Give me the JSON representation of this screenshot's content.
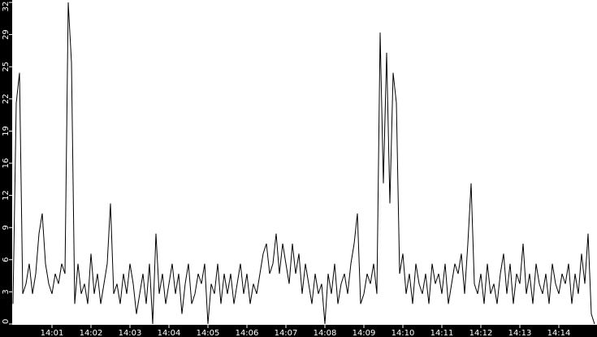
{
  "chart_data": {
    "type": "line",
    "title": "",
    "xlabel": "",
    "ylabel": "",
    "ylim": [
      0,
      32
    ],
    "y_ticks": [
      "0",
      "3",
      "6",
      "9",
      "12",
      "16",
      "19",
      "22",
      "25",
      "29",
      "32"
    ],
    "y_tick_values": [
      0,
      3.2,
      6.4,
      9.6,
      12.8,
      16,
      19.2,
      22.4,
      25.6,
      28.8,
      32
    ],
    "x_range": [
      "14:00",
      "14:15"
    ],
    "x_ticks": [
      "14:01",
      "14:02",
      "14:03",
      "14:04",
      "14:05",
      "14:06",
      "14:07",
      "14:08",
      "14:09",
      "14:10",
      "14:11",
      "14:12",
      "14:13",
      "14:14"
    ],
    "x_start": "14:00:00",
    "x_interval_seconds": 5,
    "grid": false,
    "colors": {
      "line": "#000000",
      "plot_bg": "#ffffff",
      "axis_bg": "#000000",
      "axis_text": "#ffffff"
    },
    "values": [
      2,
      22,
      25,
      3,
      4,
      6,
      3,
      5,
      9,
      11,
      6,
      4,
      3,
      5,
      4,
      6,
      5,
      32,
      26,
      2,
      6,
      3,
      4,
      2,
      7,
      3,
      5,
      2,
      4,
      6,
      12,
      3,
      4,
      2,
      5,
      3,
      6,
      4,
      1,
      3,
      5,
      2,
      6,
      0,
      9,
      3,
      5,
      2,
      4,
      6,
      3,
      5,
      1,
      4,
      6,
      2,
      3,
      5,
      4,
      6,
      0,
      4,
      3,
      6,
      2,
      5,
      3,
      5,
      2,
      4,
      6,
      3,
      5,
      2,
      4,
      3,
      5,
      7,
      8,
      5,
      6,
      9,
      5,
      8,
      6,
      4,
      8,
      5,
      7,
      3,
      6,
      4,
      2,
      5,
      3,
      4,
      0,
      5,
      3,
      6,
      2,
      4,
      5,
      3,
      6,
      8,
      11,
      2,
      3,
      5,
      4,
      6,
      3,
      29,
      14,
      27,
      12,
      25,
      22,
      5,
      7,
      3,
      5,
      2,
      6,
      4,
      3,
      5,
      2,
      6,
      4,
      5,
      3,
      6,
      2,
      4,
      6,
      5,
      7,
      3,
      8,
      14,
      4,
      3,
      5,
      2,
      6,
      3,
      4,
      2,
      5,
      7,
      3,
      6,
      2,
      5,
      4,
      8,
      3,
      5,
      2,
      6,
      4,
      3,
      5,
      2,
      6,
      4,
      3,
      5,
      4,
      6,
      2,
      5,
      3,
      7,
      4,
      9,
      1,
      0
    ]
  }
}
